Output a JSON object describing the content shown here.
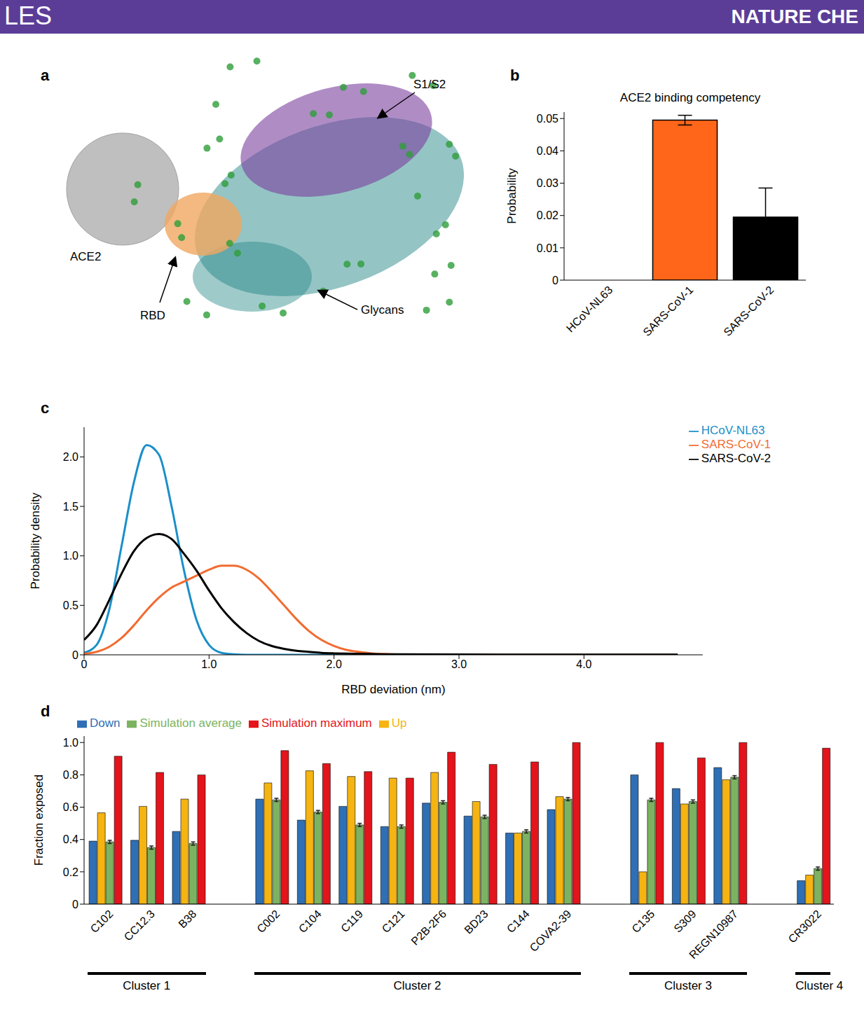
{
  "header": {
    "left": "LES",
    "right": "NATURE CHE"
  },
  "diagram": {
    "panel": "a",
    "labels": {
      "ace2": "ACE2",
      "rbd": "RBD",
      "s1s2": "S1/S2",
      "glycans": "Glycans"
    }
  },
  "chart_data": [
    {
      "panel": "b",
      "type": "bar",
      "title": "ACE2 binding competency",
      "y_label": "Probability",
      "categories": [
        "HCoV-NL63",
        "SARS-CoV-1",
        "SARS-CoV-2"
      ],
      "values": [
        0,
        0.0495,
        0.0195
      ],
      "errors": [
        0,
        0.0015,
        0.009
      ],
      "colors": [
        "#1a8fc9",
        "#ff6619",
        "#000000"
      ],
      "ylim": [
        0,
        0.052
      ],
      "yticks": [
        0,
        0.01,
        0.02,
        0.03,
        0.04,
        0.05
      ]
    },
    {
      "panel": "c",
      "type": "line",
      "x_label": "RBD deviation (nm)",
      "y_label": "Probability density",
      "x": [
        0,
        0.1,
        0.2,
        0.3,
        0.4,
        0.5,
        0.6,
        0.7,
        0.8,
        0.9,
        1.0,
        1.1,
        1.2,
        1.3,
        1.4,
        1.5,
        1.6,
        1.7,
        1.8,
        1.9,
        2.0,
        2.1,
        2.2,
        2.3,
        2.4,
        2.5,
        3.0,
        3.5,
        4.0,
        4.75
      ],
      "series": [
        {
          "name": "HCoV-NL63",
          "color": "#1a8fc9",
          "values": [
            0.02,
            0.1,
            0.45,
            1.1,
            1.75,
            2.12,
            2.02,
            1.5,
            0.85,
            0.35,
            0.1,
            0.02,
            0.005,
            0,
            0,
            0,
            0,
            0,
            0,
            0,
            0,
            0,
            0,
            0,
            0,
            0,
            0,
            0,
            0,
            0
          ]
        },
        {
          "name": "SARS-CoV-1",
          "color": "#f26b30",
          "values": [
            0.01,
            0.03,
            0.08,
            0.17,
            0.3,
            0.45,
            0.58,
            0.68,
            0.74,
            0.8,
            0.86,
            0.9,
            0.9,
            0.86,
            0.77,
            0.64,
            0.5,
            0.36,
            0.24,
            0.15,
            0.09,
            0.05,
            0.03,
            0.015,
            0.008,
            0.004,
            0.001,
            0,
            0,
            0
          ]
        },
        {
          "name": "SARS-CoV-2",
          "color": "#000000",
          "values": [
            0.15,
            0.3,
            0.55,
            0.82,
            1.05,
            1.18,
            1.22,
            1.17,
            1.02,
            0.85,
            0.65,
            0.47,
            0.33,
            0.22,
            0.14,
            0.09,
            0.06,
            0.04,
            0.03,
            0.02,
            0.015,
            0.012,
            0.01,
            0.008,
            0.006,
            0.005,
            0.003,
            0.002,
            0.001,
            0.001
          ]
        }
      ],
      "xlim": [
        0,
        4.95
      ],
      "xticks": [
        0,
        {
          "value": 1,
          "label": "1.0"
        },
        {
          "value": 2,
          "label": "2.0"
        },
        {
          "value": 3,
          "label": "3.0"
        },
        {
          "value": 4,
          "label": "4.0"
        }
      ],
      "ylim": [
        0,
        2.3
      ],
      "yticks": [
        0,
        0.5,
        {
          "value": 1,
          "label": "1.0"
        },
        1.5,
        {
          "value": 2,
          "label": "2.0"
        }
      ],
      "legend": "upper right"
    },
    {
      "panel": "d",
      "type": "bar",
      "y_label": "Fraction exposed",
      "categories": [
        "C102",
        "CC12.3",
        "B38",
        null,
        "C002",
        "C104",
        "C119",
        "C121",
        "P2B-2F6",
        "BD23",
        "C144",
        "COVA2-39",
        null,
        "C135",
        "S309",
        "REGN10987",
        null,
        "CR3022"
      ],
      "series": [
        {
          "name": "Down",
          "color": "#2f6fb5",
          "values": [
            0.39,
            0.395,
            0.45,
            null,
            0.65,
            0.52,
            0.605,
            0.48,
            0.625,
            0.545,
            0.44,
            0.585,
            null,
            0.8,
            0.715,
            0.845,
            null,
            0.145
          ]
        },
        {
          "name": "Up",
          "color": "#f5b412",
          "values": [
            0.565,
            0.605,
            0.65,
            null,
            0.75,
            0.825,
            0.79,
            0.78,
            0.815,
            0.635,
            0.44,
            0.665,
            null,
            0.2,
            0.62,
            0.77,
            null,
            0.18
          ]
        },
        {
          "name": "Simulation average",
          "color": "#7cb361",
          "values": [
            0.385,
            0.35,
            0.375,
            null,
            0.645,
            0.57,
            0.49,
            0.48,
            0.63,
            0.54,
            0.45,
            0.65,
            null,
            0.645,
            0.635,
            0.785,
            null,
            0.22
          ],
          "errors": [
            0.01,
            0.01,
            0.01,
            null,
            0.01,
            0.01,
            0.01,
            0.01,
            0.01,
            0.01,
            0.01,
            0.01,
            null,
            0.01,
            0.01,
            0.01,
            null,
            0.01
          ]
        },
        {
          "name": "Simulation maximum",
          "color": "#e3141b",
          "values": [
            0.915,
            0.815,
            0.8,
            null,
            0.95,
            0.87,
            0.82,
            0.78,
            0.94,
            0.865,
            0.88,
            1.0,
            null,
            1.0,
            0.905,
            1.0,
            null,
            0.965
          ]
        }
      ],
      "ylim": [
        0,
        1.04
      ],
      "yticks": [
        0,
        0.2,
        0.4,
        0.6,
        0.8,
        {
          "value": 1,
          "label": "1.0"
        }
      ],
      "legend": "top",
      "clusters": [
        {
          "label": "Cluster 1",
          "categories": [
            "C102",
            "CC12.3",
            "B38"
          ]
        },
        {
          "label": "Cluster 2",
          "categories": [
            "C002",
            "C104",
            "C119",
            "C121",
            "P2B-2F6",
            "BD23",
            "C144",
            "COVA2-39"
          ]
        },
        {
          "label": "Cluster 3",
          "categories": [
            "C135",
            "S309",
            "REGN10987"
          ]
        },
        {
          "label": "Cluster 4",
          "categories": [
            "CR3022"
          ]
        }
      ]
    }
  ]
}
